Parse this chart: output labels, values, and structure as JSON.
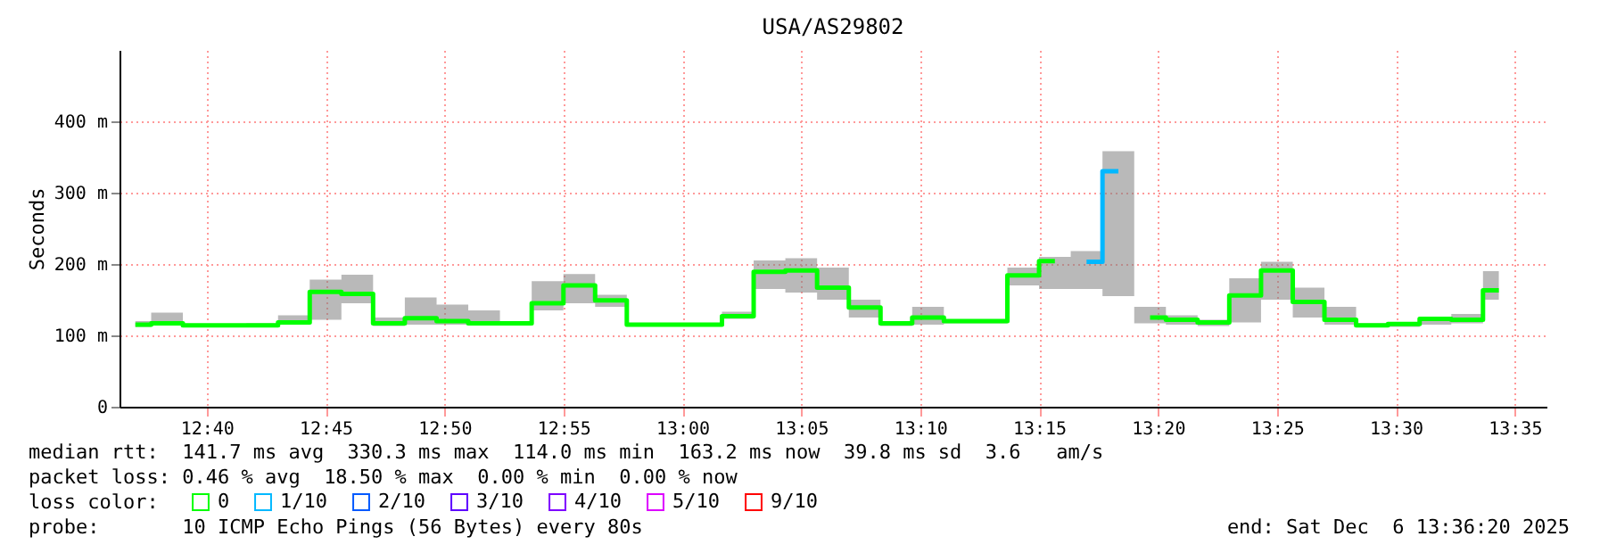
{
  "chart_data": {
    "type": "step",
    "title": "USA/AS29802",
    "ylabel": "Seconds",
    "x": [
      12.6167,
      12.6389,
      12.6611,
      12.6833,
      12.7056,
      12.7278,
      12.75,
      12.7722,
      12.7944,
      12.8167,
      12.8389,
      12.8611,
      12.8833,
      12.9056,
      12.9278,
      12.95,
      12.9722,
      12.9944,
      13.0167,
      13.0389,
      13.0611,
      13.0833,
      13.1056,
      13.1278,
      13.15,
      13.1722,
      13.1944,
      13.2167,
      13.2389,
      13.2611,
      13.2833,
      13.3056,
      13.3278,
      13.35,
      13.3722,
      13.3944,
      13.4167,
      13.4389,
      13.4611,
      13.4833,
      13.5056,
      13.5278,
      13.55,
      13.5722
    ],
    "series": [
      {
        "name": "0",
        "color": "#00ff00",
        "values": [
          115,
          117,
          114,
          114,
          114,
          118,
          161,
          158,
          117,
          124,
          120,
          117,
          117,
          145,
          170,
          149,
          115,
          115,
          115,
          127,
          189,
          191,
          167,
          139,
          117,
          125,
          120,
          120,
          184,
          204,
          null,
          null,
          125,
          122,
          118,
          156,
          191,
          147,
          122,
          114,
          116,
          123,
          122,
          163
        ],
        "lower": [
          112,
          116,
          113,
          113,
          113,
          115,
          122,
          145,
          113,
          115,
          115,
          115,
          115,
          135,
          145,
          140,
          113,
          113,
          114,
          123,
          165,
          160,
          150,
          125,
          113,
          115,
          117,
          117,
          170,
          165,
          165,
          155,
          117,
          115,
          113,
          118,
          150,
          125,
          115,
          112,
          112,
          115,
          117,
          150
        ],
        "upper": [
          120,
          132,
          116,
          116,
          117,
          128,
          178,
          185,
          125,
          153,
          143,
          135,
          119,
          176,
          186,
          157,
          116,
          116,
          117,
          133,
          205,
          208,
          195,
          150,
          116,
          140,
          122,
          122,
          195,
          210,
          218,
          358,
          140,
          128,
          122,
          180,
          203,
          167,
          140,
          117,
          117,
          125,
          130,
          190
        ]
      },
      {
        "name": "1/10",
        "color": "#00b8ff",
        "values": [
          null,
          null,
          null,
          null,
          null,
          null,
          null,
          null,
          null,
          null,
          null,
          null,
          null,
          null,
          null,
          null,
          null,
          null,
          null,
          null,
          null,
          null,
          null,
          null,
          null,
          null,
          null,
          null,
          null,
          null,
          203,
          330,
          null,
          null,
          null,
          null,
          null,
          null,
          null,
          null,
          null,
          null,
          null,
          null
        ]
      },
      {
        "name": "2/10",
        "color": "#0059ff",
        "values": [
          null,
          null,
          null,
          null,
          null,
          null,
          null,
          null,
          null,
          null,
          null,
          null,
          null,
          null,
          null,
          null,
          null,
          null,
          null,
          null,
          null,
          null,
          null,
          null,
          null,
          null,
          null,
          null,
          null,
          null,
          null,
          null,
          null,
          null,
          null,
          null,
          null,
          null,
          null,
          null,
          null,
          null,
          null,
          null
        ]
      },
      {
        "name": "3/10",
        "color": "#5e00ff",
        "values": [
          null,
          null,
          null,
          null,
          null,
          null,
          null,
          null,
          null,
          null,
          null,
          null,
          null,
          null,
          null,
          null,
          null,
          null,
          null,
          null,
          null,
          null,
          null,
          null,
          null,
          null,
          null,
          null,
          null,
          null,
          null,
          null,
          null,
          null,
          null,
          null,
          null,
          null,
          null,
          null,
          null,
          null,
          null,
          null
        ]
      },
      {
        "name": "4/10",
        "color": "#7e00ff",
        "values": [
          null,
          null,
          null,
          null,
          null,
          null,
          null,
          null,
          null,
          null,
          null,
          null,
          null,
          null,
          null,
          null,
          null,
          null,
          null,
          null,
          null,
          null,
          null,
          null,
          null,
          null,
          null,
          null,
          null,
          null,
          null,
          null,
          null,
          null,
          null,
          null,
          null,
          null,
          null,
          null,
          null,
          null,
          null,
          null
        ]
      },
      {
        "name": "5/10",
        "color": "#dd00ff",
        "values": [
          null,
          null,
          null,
          null,
          null,
          null,
          null,
          null,
          null,
          null,
          null,
          null,
          null,
          null,
          null,
          null,
          null,
          null,
          null,
          null,
          null,
          null,
          null,
          null,
          null,
          null,
          null,
          null,
          null,
          null,
          null,
          null,
          null,
          null,
          null,
          null,
          null,
          null,
          null,
          null,
          null,
          null,
          null,
          null
        ]
      },
      {
        "name": "9/10",
        "color": "#ff0000",
        "values": [
          null,
          null,
          null,
          null,
          null,
          null,
          null,
          null,
          null,
          null,
          null,
          null,
          null,
          null,
          null,
          null,
          null,
          null,
          null,
          null,
          null,
          null,
          null,
          null,
          null,
          null,
          null,
          null,
          null,
          null,
          null,
          null,
          null,
          null,
          null,
          null,
          null,
          null,
          null,
          null,
          null,
          null,
          null,
          null
        ]
      }
    ],
    "xlim": [
      12.6056,
      13.6056
    ],
    "xticks": [
      {
        "value": 12.6667,
        "label": "12:40"
      },
      {
        "value": 12.75,
        "label": "12:45"
      },
      {
        "value": 12.8333,
        "label": "12:50"
      },
      {
        "value": 12.9167,
        "label": "12:55"
      },
      {
        "value": 13,
        "label": "13:00"
      },
      {
        "value": 13.0833,
        "label": "13:05"
      },
      {
        "value": 13.1667,
        "label": "13:10"
      },
      {
        "value": 13.25,
        "label": "13:15"
      },
      {
        "value": 13.3333,
        "label": "13:20"
      },
      {
        "value": 13.4167,
        "label": "13:25"
      },
      {
        "value": 13.5,
        "label": "13:30"
      },
      {
        "value": 13.5833,
        "label": "13:35"
      }
    ],
    "ylim": [
      0,
      500
    ],
    "yticks": [
      0,
      {
        "value": 100,
        "label": "100 m"
      },
      {
        "value": 200,
        "label": "200 m"
      },
      {
        "value": 300,
        "label": "300 m"
      },
      {
        "value": 400,
        "label": "400 m"
      }
    ],
    "grid": true,
    "legend": "bottom left",
    "legend_title": "loss color:",
    "annotations": [
      "median rtt:  141.7 ms avg  330.3 ms max  114.0 ms min  163.2 ms now  39.8 ms sd  3.6   am/s",
      "packet loss: 0.46 % avg  18.50 % max  0.00 % min  0.00 % now",
      "probe:       10 ICMP Echo Pings (56 Bytes) every 80s",
      "end: Sat Dec  6 13:36:20 2025"
    ]
  }
}
